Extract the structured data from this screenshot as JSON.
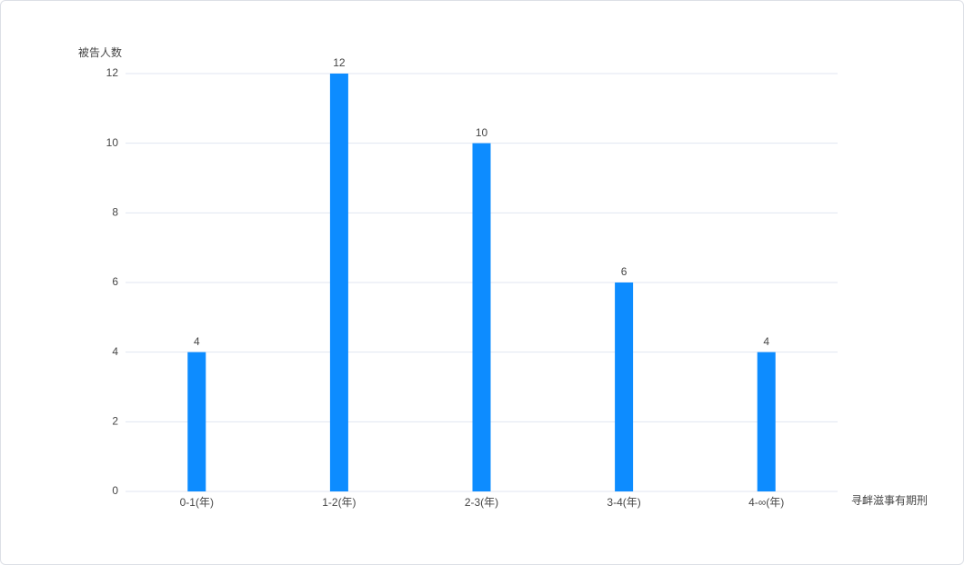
{
  "chart_data": {
    "type": "bar",
    "y_label": "被告人数",
    "x_label": "寻衅滋事有期刑",
    "categories": [
      "0-1(年)",
      "1-2(年)",
      "2-3(年)",
      "3-4(年)",
      "4-∞(年)"
    ],
    "values": [
      4,
      12,
      10,
      6,
      4
    ],
    "color": "#0d8cff",
    "ylim": [
      0,
      12
    ],
    "yticks": [
      0,
      2,
      4,
      6,
      8,
      10,
      12
    ],
    "grid": true,
    "data_labels": true
  }
}
